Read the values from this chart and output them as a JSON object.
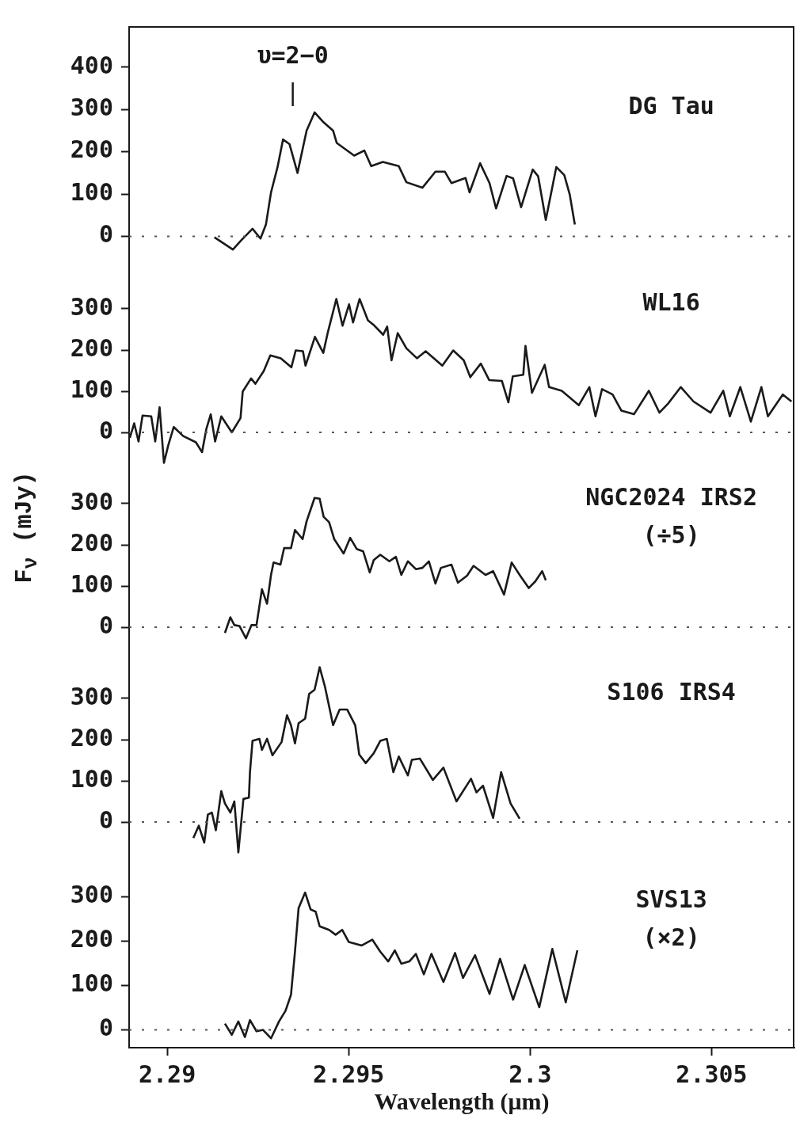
{
  "chart_data": [
    {
      "type": "line",
      "xlim": [
        2.28895,
        2.30728
      ],
      "ylim": [
        -100,
        495
      ],
      "yticks": [
        0,
        100,
        200,
        300,
        400
      ],
      "tick_labels": "y",
      "series": [
        {
          "name": "DG Tau",
          "color": "#1a1a1a",
          "x": [
            2.2913,
            2.29181,
            2.29203,
            2.29235,
            2.29257,
            2.29272,
            2.29286,
            2.29304,
            2.29319,
            2.29337,
            2.29359,
            2.29384,
            2.29406,
            2.29428,
            2.29457,
            2.29467,
            2.29515,
            2.29543,
            2.29562,
            2.29594,
            2.29638,
            2.29659,
            2.29703,
            2.29739,
            2.29765,
            2.29783,
            2.29822,
            2.29833,
            2.29862,
            2.29888,
            2.29906,
            2.29935,
            2.29953,
            2.29975,
            2.30007,
            2.30022,
            2.30043,
            2.30072,
            2.30094,
            2.30109,
            2.30123
          ],
          "values": [
            -2,
            -31,
            -10,
            18,
            -5,
            28,
            104,
            164,
            229,
            218,
            150,
            250,
            293,
            272,
            250,
            221,
            191,
            203,
            166,
            176,
            166,
            128,
            115,
            153,
            153,
            126,
            138,
            104,
            173,
            126,
            66,
            143,
            137,
            69,
            158,
            142,
            39,
            164,
            145,
            99,
            28
          ]
        }
      ],
      "ref_lines": [
        {
          "axis": "y",
          "value": 0,
          "line_style": "dotted"
        }
      ],
      "annotations": [
        "υ=2−0"
      ]
    },
    {
      "type": "line",
      "xlim": [
        2.28895,
        2.30728
      ],
      "ylim": [
        -100,
        400
      ],
      "yticks": [
        0,
        100,
        200,
        300
      ],
      "tick_labels": "y",
      "series": [
        {
          "name": "WL16",
          "color": "#1a1a1a",
          "x": [
            2.28897,
            2.28909,
            2.28921,
            2.28932,
            2.28956,
            2.28967,
            2.28979,
            2.28991,
            2.29003,
            2.29018,
            2.29044,
            2.29079,
            2.29096,
            2.29108,
            2.2912,
            2.29132,
            2.29149,
            2.29178,
            2.29202,
            2.29208,
            2.29231,
            2.29243,
            2.29266,
            2.29284,
            2.29313,
            2.29342,
            2.29354,
            2.29374,
            2.29381,
            2.29407,
            2.2943,
            2.29442,
            2.29466,
            2.29483,
            2.29501,
            2.29512,
            2.2953,
            2.29553,
            2.29571,
            2.29595,
            2.29606,
            2.29618,
            2.29635,
            2.29659,
            2.29688,
            2.29712,
            2.29758,
            2.29788,
            2.29817,
            2.29835,
            2.29864,
            2.29887,
            2.29922,
            2.2994,
            2.29952,
            2.29981,
            2.29987,
            2.30005,
            2.3004,
            2.30052,
            2.30087,
            2.30134,
            2.30163,
            2.3018,
            2.30198,
            2.30227,
            2.30251,
            2.30286,
            2.30327,
            2.30356,
            2.3038,
            2.30415,
            2.3045,
            2.30497,
            2.30532,
            2.3055,
            2.30579,
            2.30608,
            2.30637,
            2.30655,
            2.30696,
            2.3072
          ],
          "values": [
            -13,
            22,
            -22,
            41,
            39,
            -22,
            61,
            -74,
            -31,
            13,
            -9,
            -24,
            -48,
            9,
            44,
            -22,
            39,
            0,
            35,
            99,
            131,
            118,
            149,
            187,
            180,
            158,
            199,
            197,
            162,
            232,
            193,
            241,
            324,
            259,
            311,
            267,
            324,
            272,
            259,
            237,
            257,
            175,
            241,
            204,
            180,
            197,
            162,
            199,
            175,
            134,
            167,
            127,
            125,
            73,
            136,
            140,
            210,
            96,
            164,
            110,
            101,
            66,
            110,
            39,
            105,
            92,
            53,
            44,
            101,
            48,
            70,
            110,
            75,
            48,
            101,
            39,
            110,
            26,
            110,
            39,
            92,
            75
          ]
        }
      ],
      "ref_lines": [
        {
          "axis": "y",
          "value": 0,
          "line_style": "dotted"
        }
      ]
    },
    {
      "type": "line",
      "xlim": [
        2.28895,
        2.30728
      ],
      "ylim": [
        -100,
        400
      ],
      "yticks": [
        0,
        100,
        200,
        300
      ],
      "tick_labels": "y",
      "ylabel": "F$_{ν}$ (mJy)",
      "series": [
        {
          "name": "NGC2024 IRS2",
          "color": "#1a1a1a",
          "x": [
            2.29159,
            2.29174,
            2.29185,
            2.29199,
            2.29217,
            2.29232,
            2.29246,
            2.29261,
            2.29275,
            2.29286,
            2.29293,
            2.29312,
            2.29322,
            2.29341,
            2.29352,
            2.29373,
            2.29384,
            2.29406,
            2.2942,
            2.29431,
            2.29446,
            2.2946,
            2.29486,
            2.29504,
            2.29522,
            2.2954,
            2.29558,
            2.29569,
            2.29587,
            2.29612,
            2.2963,
            2.29645,
            2.29663,
            2.29685,
            2.29703,
            2.29721,
            2.29739,
            2.29754,
            2.29783,
            2.29801,
            2.29826,
            2.29844,
            2.29877,
            2.29898,
            2.29928,
            2.29949,
            2.29971,
            2.29996,
            2.30014,
            2.30033,
            2.30043
          ],
          "values": [
            -14,
            24,
            5,
            3,
            -27,
            5,
            5,
            92,
            57,
            127,
            157,
            152,
            192,
            192,
            236,
            214,
            257,
            314,
            312,
            268,
            255,
            214,
            179,
            217,
            190,
            184,
            133,
            163,
            176,
            160,
            171,
            127,
            160,
            141,
            144,
            160,
            106,
            144,
            152,
            108,
            125,
            149,
            127,
            136,
            79,
            157,
            127,
            95,
            111,
            136,
            114
          ]
        }
      ],
      "ref_lines": [
        {
          "axis": "y",
          "value": 0,
          "line_style": "dotted"
        }
      ],
      "annotations": [
        "(÷5)"
      ]
    },
    {
      "type": "line",
      "xlim": [
        2.28895,
        2.30728
      ],
      "ylim": [
        -100,
        400
      ],
      "yticks": [
        0,
        100,
        200,
        300
      ],
      "tick_labels": "y",
      "series": [
        {
          "name": "S106 IRS4",
          "color": "#1a1a1a",
          "x": [
            2.29072,
            2.29087,
            2.29102,
            2.29112,
            2.29123,
            2.29134,
            2.29149,
            2.29159,
            2.29174,
            2.29185,
            2.29196,
            2.2921,
            2.29225,
            2.29228,
            2.29235,
            2.29254,
            2.29261,
            2.29275,
            2.2929,
            2.29315,
            2.2933,
            2.29341,
            2.29352,
            2.29362,
            2.2938,
            2.29391,
            2.29406,
            2.2942,
            2.29435,
            2.29457,
            2.29475,
            2.29496,
            2.29518,
            2.29529,
            2.29547,
            2.29569,
            2.29587,
            2.29605,
            2.29623,
            2.29638,
            2.29663,
            2.29674,
            2.29696,
            2.29732,
            2.29761,
            2.29797,
            2.29837,
            2.29852,
            2.2987,
            2.29898,
            2.2992,
            2.29946,
            2.29971
          ],
          "values": [
            -39,
            -9,
            -50,
            18,
            23,
            -20,
            75,
            45,
            23,
            50,
            -74,
            56,
            59,
            121,
            197,
            202,
            175,
            202,
            162,
            194,
            259,
            235,
            191,
            240,
            251,
            311,
            321,
            376,
            327,
            235,
            273,
            273,
            235,
            164,
            143,
            167,
            197,
            202,
            121,
            159,
            113,
            151,
            154,
            102,
            132,
            50,
            105,
            72,
            88,
            10,
            121,
            45,
            8
          ]
        }
      ],
      "ref_lines": [
        {
          "axis": "y",
          "value": 0,
          "line_style": "dotted"
        }
      ]
    },
    {
      "type": "line",
      "xlim": [
        2.28895,
        2.30728
      ],
      "ylim": [
        -40,
        400
      ],
      "yticks": [
        0,
        100,
        200,
        300
      ],
      "xticks": [
        2.29,
        2.295,
        2.3,
        2.305
      ],
      "xlabel": "Wavelength (μm)",
      "series": [
        {
          "name": "SVS13",
          "color": "#1a1a1a",
          "x": [
            2.29159,
            2.29178,
            2.29196,
            2.29214,
            2.29228,
            2.29246,
            2.29264,
            2.29286,
            2.29308,
            2.29326,
            2.29341,
            2.29352,
            2.29362,
            2.2938,
            2.29395,
            2.29409,
            2.2942,
            2.29446,
            2.29464,
            2.29482,
            2.295,
            2.29536,
            2.29565,
            2.29587,
            2.29609,
            2.29627,
            2.29645,
            2.29667,
            2.29685,
            2.29707,
            2.29728,
            2.29761,
            2.29793,
            2.29815,
            2.29848,
            2.29888,
            2.29917,
            2.29953,
            2.29985,
            2.30025,
            2.30061,
            2.30098,
            2.3013
          ],
          "values": [
            14,
            -11,
            19,
            -16,
            22,
            -3,
            0,
            -19,
            19,
            43,
            79,
            176,
            274,
            309,
            271,
            266,
            233,
            225,
            214,
            225,
            198,
            190,
            203,
            176,
            154,
            179,
            149,
            154,
            171,
            125,
            171,
            108,
            173,
            117,
            168,
            81,
            160,
            68,
            146,
            51,
            182,
            62,
            179
          ]
        }
      ],
      "ref_lines": [
        {
          "axis": "y",
          "value": 0,
          "line_style": "dotted"
        }
      ],
      "annotations": [
        "(×2)"
      ]
    }
  ]
}
